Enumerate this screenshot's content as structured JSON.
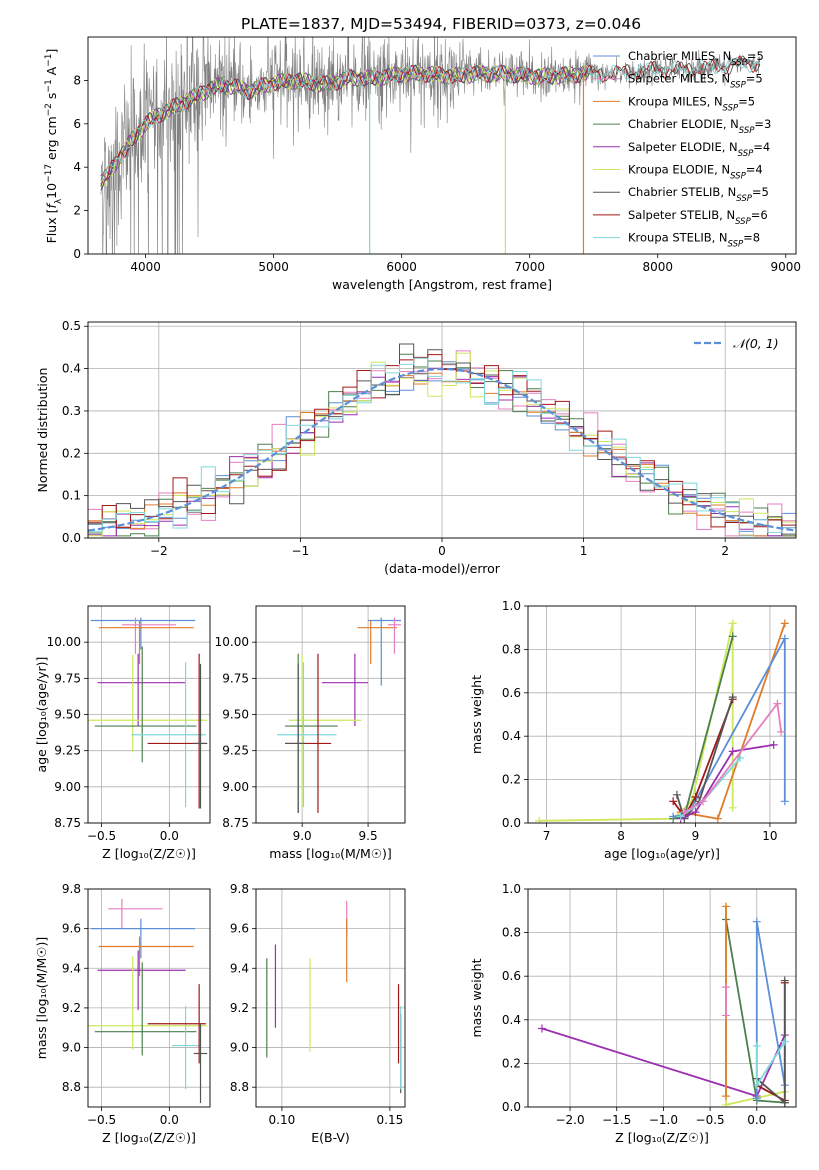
{
  "figure": {
    "title": "PLATE=1837, MJD=53494, FIBERID=0373, z=0.046"
  },
  "colors": {
    "Chabrier MILES": "#5b8fd8",
    "Salpeter MILES": "#e57fc0",
    "Kroupa MILES": "#e07b28",
    "Chabrier ELODIE": "#4c7f4c",
    "Salpeter ELODIE": "#9b2fb0",
    "Kroupa ELODIE": "#cde85a",
    "Chabrier STELIB": "#555555",
    "Salpeter STELIB": "#a01818",
    "Kroupa STELIB": "#7fd8dc",
    "data": "#808080",
    "gaussian": "#5b8fd8"
  },
  "chart_data": [
    {
      "id": "spectrum",
      "type": "line",
      "title": "PLATE=1837, MJD=53494, FIBERID=0373, z=0.046",
      "xlabel": "wavelength [Angstrom, rest frame]",
      "ylabel_parts": [
        "Flux [",
        "f",
        "λ",
        "10",
        "−17",
        " erg cm",
        "−2",
        " s",
        "−1",
        " A",
        "−1",
        "]"
      ],
      "xlim": [
        3550,
        9080
      ],
      "ylim": [
        0,
        10
      ],
      "xticks": [
        4000,
        5000,
        6000,
        7000,
        8000,
        9000
      ],
      "yticks": [
        0,
        2,
        4,
        6,
        8
      ],
      "legend": [
        {
          "label": "Chabrier MILES, N",
          "sub": "SSP",
          "tail": "=5",
          "key": "Chabrier MILES"
        },
        {
          "label": "Salpeter MILES, N",
          "sub": "SSP",
          "tail": "=5",
          "key": "Salpeter MILES"
        },
        {
          "label": "Kroupa MILES, N",
          "sub": "SSP",
          "tail": "=5",
          "key": "Kroupa MILES"
        },
        {
          "label": "Chabrier ELODIE, N",
          "sub": "SSP",
          "tail": "=3",
          "key": "Chabrier ELODIE"
        },
        {
          "label": "Salpeter ELODIE, N",
          "sub": "SSP",
          "tail": "=4",
          "key": "Salpeter ELODIE"
        },
        {
          "label": "Kroupa ELODIE, N",
          "sub": "SSP",
          "tail": "=4",
          "key": "Kroupa ELODIE"
        },
        {
          "label": "Chabrier STELIB, N",
          "sub": "SSP",
          "tail": "=5",
          "key": "Chabrier STELIB"
        },
        {
          "label": "Salpeter STELIB, N",
          "sub": "SSP",
          "tail": "=6",
          "key": "Salpeter STELIB"
        },
        {
          "label": "Kroupa STELIB, N",
          "sub": "SSP",
          "tail": "=8",
          "key": "Kroupa STELIB"
        }
      ],
      "legend_position": "upper-right",
      "continuum": {
        "x": [
          3650,
          3700,
          3800,
          3900,
          4000,
          4100,
          4200,
          4300,
          4400,
          4500,
          4600,
          4700,
          4800,
          4900,
          5000,
          5200,
          5400,
          5600,
          5800,
          6000,
          6200,
          6400,
          6600,
          6800,
          7000,
          7200,
          7400,
          7600,
          7800,
          8000,
          8200,
          8400,
          8600,
          8800
        ],
        "y": [
          3.3,
          3.6,
          4.5,
          5.3,
          6.0,
          6.4,
          6.7,
          7.0,
          7.3,
          7.6,
          7.8,
          7.7,
          7.5,
          7.7,
          7.9,
          8.0,
          7.8,
          8.1,
          8.1,
          8.3,
          8.3,
          8.2,
          8.3,
          8.3,
          8.2,
          8.2,
          8.3,
          8.3,
          8.4,
          8.5,
          8.5,
          8.6,
          8.7,
          8.8
        ]
      },
      "drops": [
        {
          "x": 5750,
          "key": "Kroupa STELIB"
        },
        {
          "x": 6810,
          "key": "Kroupa ELODIE"
        },
        {
          "x": 7420,
          "key": "Kroupa MILES"
        }
      ],
      "models_end_x": 7450,
      "grid": false
    },
    {
      "id": "residuals",
      "type": "step",
      "xlabel": "(data-model)/error",
      "ylabel": "Normed distribution",
      "xlim": [
        -2.5,
        2.5
      ],
      "ylim": [
        0,
        0.51
      ],
      "xticks": [
        -2,
        -1,
        0,
        1,
        2
      ],
      "yticks": [
        0.0,
        0.1,
        0.2,
        0.3,
        0.4,
        0.5
      ],
      "legend": [
        {
          "label": "𝒩(0, 1)",
          "key": "gaussian",
          "style": "dashed"
        }
      ],
      "legend_position": "upper-right",
      "bin_width": 0.1,
      "grid": true
    },
    {
      "id": "age_vs_Z",
      "type": "errorbar",
      "xlabel": "Z [log₁₀(Z/Z☉)]",
      "ylabel": "age  [log₁₀(age/yr)]",
      "xlim": [
        -0.6,
        0.3
      ],
      "ylim": [
        8.75,
        10.25
      ],
      "xticks": [
        -0.5,
        0.0
      ],
      "yticks": [
        8.75,
        9.0,
        9.25,
        9.5,
        9.75,
        10.0
      ],
      "points": [
        {
          "key": "Chabrier MILES",
          "x": -0.21,
          "xerr": [
            0.37,
            0.4
          ],
          "y": 10.15,
          "yerr": [
            0.2,
            0.02
          ]
        },
        {
          "key": "Kroupa MILES",
          "x": -0.22,
          "xerr": [
            0.3,
            0.4
          ],
          "y": 10.1,
          "yerr": [
            0.25,
            0.05
          ]
        },
        {
          "key": "Salpeter MILES",
          "x": -0.25,
          "xerr": [
            0.1,
            0.3
          ],
          "y": 10.12,
          "yerr": [
            0.2,
            0.05
          ]
        },
        {
          "key": "Salpeter ELODIE",
          "x": -0.23,
          "xerr": [
            0.3,
            0.35
          ],
          "y": 9.72,
          "yerr": [
            0.3,
            0.2
          ]
        },
        {
          "key": "Kroupa ELODIE",
          "x": -0.27,
          "xerr": [
            0.33,
            0.55
          ],
          "y": 9.46,
          "yerr": [
            0.22,
            0.45
          ]
        },
        {
          "key": "Chabrier ELODIE",
          "x": -0.2,
          "xerr": [
            0.35,
            0.4
          ],
          "y": 9.42,
          "yerr": [
            0.25,
            0.55
          ]
        },
        {
          "key": "Kroupa STELIB",
          "x": 0.12,
          "xerr": [
            0.4,
            0.15
          ],
          "y": 9.36,
          "yerr": [
            0.5,
            0.5
          ]
        },
        {
          "key": "Salpeter STELIB",
          "x": 0.22,
          "xerr": [
            0.38,
            0.05
          ],
          "y": 9.3,
          "yerr": [
            0.45,
            0.62
          ]
        },
        {
          "key": "Chabrier STELIB",
          "x": 0.23,
          "xerr": [
            0.05,
            0.05
          ],
          "y": 9.3,
          "yerr": [
            0.45,
            0.55
          ]
        }
      ],
      "grid": true
    },
    {
      "id": "age_vs_mass",
      "type": "errorbar",
      "xlabel": "mass [log₁₀(M/M☉)]",
      "ylabel": "",
      "xlim": [
        8.65,
        9.78
      ],
      "ylim": [
        8.75,
        10.25
      ],
      "xticks": [
        9.0,
        9.5
      ],
      "yticks": [
        8.75,
        9.0,
        9.25,
        9.5,
        9.75,
        10.0
      ],
      "points": [
        {
          "key": "Chabrier MILES",
          "x": 9.6,
          "xerr": [
            0.1,
            0.15
          ],
          "y": 10.15,
          "yerr": [
            0.45,
            0.02
          ]
        },
        {
          "key": "Kroupa MILES",
          "x": 9.52,
          "xerr": [
            0.1,
            0.2
          ],
          "y": 10.1,
          "yerr": [
            0.25,
            0.05
          ]
        },
        {
          "key": "Salpeter MILES",
          "x": 9.7,
          "xerr": [
            0.05,
            0.05
          ],
          "y": 10.12,
          "yerr": [
            0.2,
            0.05
          ]
        },
        {
          "key": "Salpeter ELODIE",
          "x": 9.4,
          "xerr": [
            0.25,
            0.1
          ],
          "y": 9.72,
          "yerr": [
            0.3,
            0.2
          ]
        },
        {
          "key": "Kroupa ELODIE",
          "x": 9.0,
          "xerr": [
            0.1,
            0.45
          ],
          "y": 9.46,
          "yerr": [
            0.6,
            0.45
          ]
        },
        {
          "key": "Chabrier ELODIE",
          "x": 8.97,
          "xerr": [
            0.1,
            0.3
          ],
          "y": 9.42,
          "yerr": [
            0.6,
            0.5
          ]
        },
        {
          "key": "Kroupa STELIB",
          "x": 9.01,
          "xerr": [
            0.2,
            0.25
          ],
          "y": 9.36,
          "yerr": [
            0.5,
            0.5
          ]
        },
        {
          "key": "Salpeter STELIB",
          "x": 9.12,
          "xerr": [
            0.25,
            0.1
          ],
          "y": 9.3,
          "yerr": [
            0.48,
            0.62
          ]
        },
        {
          "key": "Chabrier STELIB",
          "x": 8.97,
          "xerr": [
            0.1,
            0.05
          ],
          "y": 9.3,
          "yerr": [
            0.48,
            0.55
          ]
        }
      ],
      "grid": true
    },
    {
      "id": "weight_vs_age",
      "type": "line",
      "xlabel": "age  [log₁₀(age/yr)]",
      "ylabel": "mass weight",
      "xlim": [
        6.75,
        10.35
      ],
      "ylim": [
        0,
        1
      ],
      "xticks": [
        7,
        8,
        9,
        10
      ],
      "yticks": [
        0.0,
        0.2,
        0.4,
        0.6,
        0.8,
        1.0
      ],
      "series": [
        {
          "key": "Kroupa ELODIE",
          "x": [
            6.9,
            8.7,
            8.95,
            9.5,
            9.5
          ],
          "y": [
            0.01,
            0.02,
            0.1,
            0.92,
            0.07
          ]
        },
        {
          "key": "Chabrier ELODIE",
          "x": [
            8.7,
            8.85,
            9.5
          ],
          "y": [
            0.02,
            0.03,
            0.86
          ]
        },
        {
          "key": "Kroupa MILES",
          "x": [
            8.8,
            9.3,
            10.2
          ],
          "y": [
            0.05,
            0.02,
            0.92
          ]
        },
        {
          "key": "Chabrier MILES",
          "x": [
            8.7,
            8.9,
            10.2,
            10.2
          ],
          "y": [
            0.03,
            0.04,
            0.85,
            0.1
          ]
        },
        {
          "key": "Salpeter STELIB",
          "x": [
            8.7,
            8.85,
            9.0,
            9.5
          ],
          "y": [
            0.1,
            0.03,
            0.12,
            0.57
          ]
        },
        {
          "key": "Chabrier STELIB",
          "x": [
            8.75,
            8.85,
            9.05,
            9.5
          ],
          "y": [
            0.13,
            0.02,
            0.1,
            0.58
          ]
        },
        {
          "key": "Salpeter ELODIE",
          "x": [
            8.8,
            9.0,
            9.5,
            10.05
          ],
          "y": [
            0.02,
            0.05,
            0.33,
            0.36
          ]
        },
        {
          "key": "Kroupa STELIB",
          "x": [
            8.8,
            9.1,
            9.6
          ],
          "y": [
            0.03,
            0.1,
            0.3
          ]
        },
        {
          "key": "Salpeter MILES",
          "x": [
            8.85,
            9.1,
            10.1,
            10.15
          ],
          "y": [
            0.05,
            0.1,
            0.55,
            0.42
          ]
        }
      ],
      "grid": true
    },
    {
      "id": "mass_vs_Z",
      "type": "errorbar",
      "xlabel": "Z [log₁₀(Z/Z☉)]",
      "ylabel": "mass [log₁₀(M/M☉)]",
      "xlim": [
        -0.6,
        0.3
      ],
      "ylim": [
        8.7,
        9.8
      ],
      "xticks": [
        -0.5,
        0.0
      ],
      "yticks": [
        8.8,
        9.0,
        9.2,
        9.4,
        9.6,
        9.8
      ],
      "points": [
        {
          "key": "Salpeter MILES",
          "x": -0.35,
          "xerr": [
            0.1,
            0.3
          ],
          "y": 9.7,
          "yerr": [
            0.1,
            0.05
          ]
        },
        {
          "key": "Chabrier MILES",
          "x": -0.21,
          "xerr": [
            0.37,
            0.4
          ],
          "y": 9.6,
          "yerr": [
            0.15,
            0.05
          ]
        },
        {
          "key": "Kroupa MILES",
          "x": -0.22,
          "xerr": [
            0.3,
            0.4
          ],
          "y": 9.51,
          "yerr": [
            0.15,
            0.05
          ]
        },
        {
          "key": "Salpeter ELODIE",
          "x": -0.23,
          "xerr": [
            0.3,
            0.35
          ],
          "y": 9.39,
          "yerr": [
            0.2,
            0.1
          ]
        },
        {
          "key": "Kroupa ELODIE",
          "x": -0.27,
          "xerr": [
            0.33,
            0.55
          ],
          "y": 9.11,
          "yerr": [
            0.12,
            0.35
          ]
        },
        {
          "key": "Chabrier ELODIE",
          "x": -0.2,
          "xerr": [
            0.35,
            0.4
          ],
          "y": 9.08,
          "yerr": [
            0.12,
            0.35
          ]
        },
        {
          "key": "Kroupa STELIB",
          "x": 0.12,
          "xerr": [
            0.1,
            0.1
          ],
          "y": 9.01,
          "yerr": [
            0.22,
            0.2
          ]
        },
        {
          "key": "Salpeter STELIB",
          "x": 0.22,
          "xerr": [
            0.38,
            0.05
          ],
          "y": 9.12,
          "yerr": [
            0.2,
            0.2
          ]
        },
        {
          "key": "Chabrier STELIB",
          "x": 0.23,
          "xerr": [
            0.05,
            0.05
          ],
          "y": 8.97,
          "yerr": [
            0.25,
            0.15
          ]
        }
      ],
      "grid": true
    },
    {
      "id": "mass_vs_EBV",
      "type": "errorbar",
      "xlabel": "E(B-V)",
      "ylabel": "",
      "xlim": [
        0.088,
        0.157
      ],
      "ylim": [
        8.7,
        9.8
      ],
      "xticks": [
        0.1,
        0.15
      ],
      "yticks": [
        8.8,
        9.0,
        9.2,
        9.4,
        9.6,
        9.8
      ],
      "points": [
        {
          "key": "Salpeter MILES",
          "x": 0.13,
          "xerr": [
            0.0,
            0.0
          ],
          "y": 9.66,
          "yerr": [
            0.1,
            0.08
          ]
        },
        {
          "key": "Kroupa MILES",
          "x": 0.13,
          "xerr": [
            0.0,
            0.0
          ],
          "y": 9.5,
          "yerr": [
            0.17,
            0.15
          ]
        },
        {
          "key": "Salpeter ELODIE",
          "x": 0.097,
          "xerr": [
            0.0,
            0.0
          ],
          "y": 9.3,
          "yerr": [
            0.2,
            0.22
          ]
        },
        {
          "key": "Chabrier ELODIE",
          "x": 0.093,
          "xerr": [
            0.0,
            0.0
          ],
          "y": 9.15,
          "yerr": [
            0.2,
            0.3
          ]
        },
        {
          "key": "Kroupa ELODIE",
          "x": 0.113,
          "xerr": [
            0.0,
            0.0
          ],
          "y": 9.2,
          "yerr": [
            0.22,
            0.25
          ]
        },
        {
          "key": "Salpeter STELIB",
          "x": 0.154,
          "xerr": [
            0.0,
            0.0
          ],
          "y": 9.12,
          "yerr": [
            0.2,
            0.2
          ]
        },
        {
          "key": "Chabrier STELIB",
          "x": 0.155,
          "xerr": [
            0.0,
            0.0
          ],
          "y": 8.97,
          "yerr": [
            0.2,
            0.2
          ]
        },
        {
          "key": "Kroupa STELIB",
          "x": 0.155,
          "xerr": [
            0.0,
            0.0
          ],
          "y": 9.01,
          "yerr": [
            0.22,
            0.2
          ]
        }
      ],
      "grid": true
    },
    {
      "id": "weight_vs_Z",
      "type": "line",
      "xlabel": "Z [log₁₀(Z/Z☉)]",
      "ylabel": "mass weight",
      "xlim": [
        -2.45,
        0.42
      ],
      "ylim": [
        0,
        1
      ],
      "xticks": [
        -2.0,
        -1.5,
        -1.0,
        -0.5,
        0.0
      ],
      "yticks": [
        0.0,
        0.2,
        0.4,
        0.6,
        0.8,
        1.0
      ],
      "series": [
        {
          "key": "Salpeter ELODIE",
          "x": [
            -2.3,
            0.0,
            0.3
          ],
          "y": [
            0.36,
            0.05,
            0.33
          ]
        },
        {
          "key": "Kroupa ELODIE",
          "x": [
            -0.33,
            -0.33,
            0.3
          ],
          "y": [
            0.92,
            0.01,
            0.07
          ]
        },
        {
          "key": "Chabrier ELODIE",
          "x": [
            -0.33,
            0.0,
            0.3
          ],
          "y": [
            0.86,
            0.03,
            0.02
          ]
        },
        {
          "key": "Kroupa MILES",
          "x": [
            -0.33,
            -0.33
          ],
          "y": [
            0.92,
            0.05
          ]
        },
        {
          "key": "Salpeter MILES",
          "x": [
            -0.33,
            -0.33
          ],
          "y": [
            0.55,
            0.42
          ]
        },
        {
          "key": "Chabrier MILES",
          "x": [
            0.0,
            0.0,
            0.3
          ],
          "y": [
            0.04,
            0.85,
            0.1
          ]
        },
        {
          "key": "Salpeter STELIB",
          "x": [
            0.0,
            0.3,
            0.3
          ],
          "y": [
            0.1,
            0.03,
            0.57
          ]
        },
        {
          "key": "Chabrier STELIB",
          "x": [
            0.0,
            0.3,
            0.3
          ],
          "y": [
            0.13,
            0.02,
            0.58
          ]
        },
        {
          "key": "Kroupa STELIB",
          "x": [
            0.0,
            0.0,
            0.3
          ],
          "y": [
            0.28,
            0.1,
            0.3
          ]
        }
      ],
      "grid": true
    }
  ]
}
